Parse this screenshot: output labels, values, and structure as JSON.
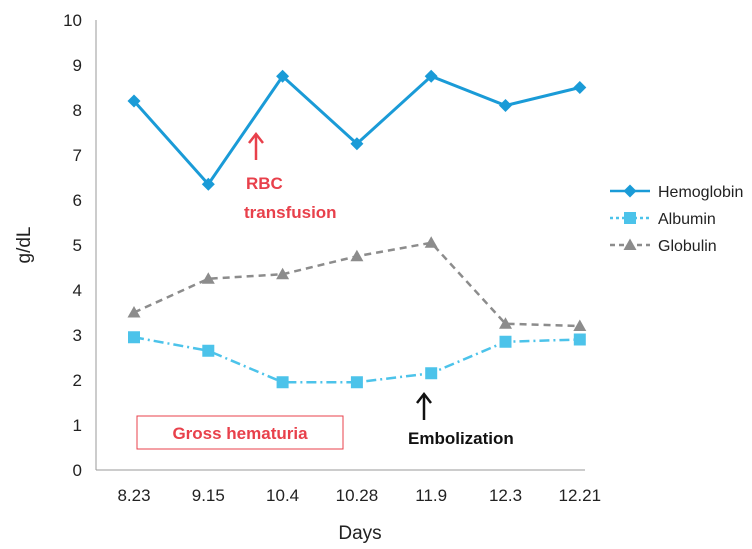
{
  "chart_data": {
    "type": "line",
    "title": "",
    "xlabel": "Days",
    "ylabel": "g/dL",
    "ylim": [
      0,
      10
    ],
    "yticks": [
      0,
      1,
      2,
      3,
      4,
      5,
      6,
      7,
      8,
      9,
      10
    ],
    "categories": [
      "8.23",
      "9.15",
      "10.4",
      "10.28",
      "11.9",
      "12.3",
      "12.21"
    ],
    "grid": false,
    "legend_position": "right",
    "series": [
      {
        "name": "Hemoglobin",
        "values": [
          8.2,
          6.35,
          8.75,
          7.25,
          8.75,
          8.1,
          8.5
        ],
        "color": "#1a9bd7",
        "line_style": "solid",
        "marker": "diamond"
      },
      {
        "name": "Albumin",
        "values": [
          2.95,
          2.65,
          1.95,
          1.95,
          2.15,
          2.85,
          2.9
        ],
        "color": "#4cc3ea",
        "line_style": "dash-dot",
        "marker": "square"
      },
      {
        "name": "Globulin",
        "values": [
          3.5,
          4.25,
          4.35,
          4.75,
          5.05,
          3.25,
          3.2
        ],
        "color": "#8c8c8c",
        "line_style": "dashed",
        "marker": "triangle"
      }
    ],
    "annotations": {
      "transfusion": {
        "line1": "RBC",
        "line2": "transfusion",
        "color": "#e8404b"
      },
      "embolization": {
        "label": "Embolization",
        "color": "#111111"
      },
      "hematuria": {
        "label": "Gross hematuria",
        "color": "#e8404b"
      }
    }
  }
}
